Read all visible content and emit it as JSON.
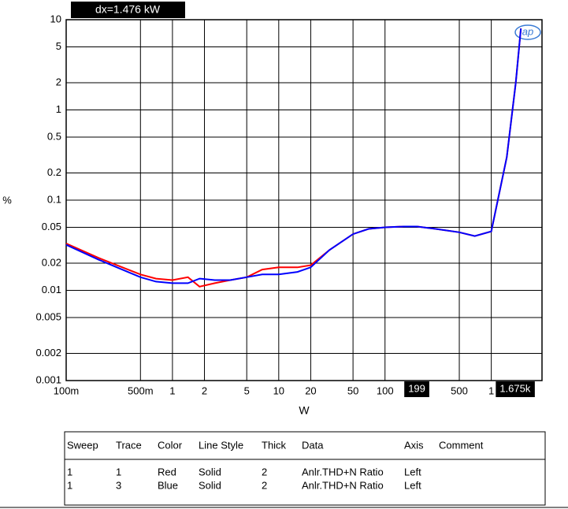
{
  "chart_data": {
    "type": "line",
    "readout": "dx=1.476 kW",
    "y_label": "%",
    "x_label": "W",
    "xscale": "log",
    "yscale": "log",
    "grid": true,
    "x": [
      0.1,
      0.2,
      0.3,
      0.5,
      0.7,
      1,
      1.4,
      1.8,
      2.5,
      3.5,
      5,
      7,
      10,
      15,
      20,
      30,
      50,
      70,
      100,
      150,
      200,
      300,
      500,
      700,
      1000,
      1400,
      1700,
      1900
    ],
    "series": [
      {
        "name": "Red",
        "color": "#ff0000",
        "values": [
          0.033,
          0.023,
          0.019,
          0.015,
          0.0135,
          0.013,
          0.014,
          0.011,
          0.012,
          0.013,
          0.014,
          0.017,
          0.018,
          0.018,
          0.019,
          0.028,
          0.042,
          0.048,
          0.05,
          0.051,
          0.051,
          0.048,
          0.044,
          0.04,
          0.045,
          0.3,
          2,
          8
        ]
      },
      {
        "name": "Blue",
        "color": "#0000ff",
        "values": [
          0.032,
          0.022,
          0.018,
          0.014,
          0.0125,
          0.012,
          0.012,
          0.0135,
          0.013,
          0.013,
          0.014,
          0.015,
          0.015,
          0.016,
          0.018,
          0.028,
          0.042,
          0.048,
          0.05,
          0.051,
          0.051,
          0.048,
          0.044,
          0.04,
          0.045,
          0.3,
          2,
          8
        ]
      }
    ],
    "xlim": [
      0.1,
      3000
    ],
    "ylim": [
      0.001,
      10
    ],
    "xticks": [
      {
        "value": 0.1,
        "label": "100m"
      },
      {
        "value": 0.5,
        "label": "500m"
      },
      1,
      2,
      5,
      10,
      20,
      50,
      100,
      500,
      {
        "value": 1000,
        "label": "1"
      }
    ],
    "yticks": [
      10,
      5,
      2,
      1,
      0.5,
      0.2,
      0.1,
      0.05,
      0.02,
      0.01,
      0.005,
      0.002,
      0.001
    ],
    "cursors": [
      {
        "value": 199,
        "label": "199"
      },
      {
        "value": 1675,
        "label": "1.675k"
      }
    ]
  },
  "table": {
    "columns": [
      "Sweep",
      "Trace",
      "Color",
      "Line Style",
      "Thick",
      "Data",
      "Axis",
      "Comment"
    ],
    "rows": [
      [
        "1",
        "1",
        "Red",
        "Solid",
        "2",
        "Anlr.THD+N Ratio",
        "Left"
      ],
      [
        "1",
        "3",
        "Blue",
        "Solid",
        "2",
        "Anlr.THD+N Ratio",
        "Left"
      ]
    ]
  }
}
